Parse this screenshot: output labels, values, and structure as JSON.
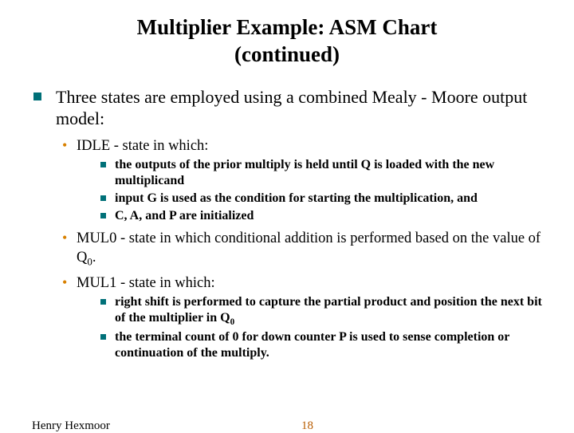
{
  "title_line1": "Multiplier Example: ASM Chart",
  "title_line2": "(continued)",
  "main": "Three states are employed using a combined Mealy - Moore output model:",
  "idle_head": "IDLE - state in which:",
  "idle_1": "the outputs of the prior multiply is held until Q is loaded with the new multiplicand",
  "idle_2": "input G is used as the condition for starting the multiplication, and",
  "idle_3": "C, A, and P are initialized",
  "mul0_a": "MUL0 - state in which conditional addition is performed based on the value of Q",
  "mul0_b": ".",
  "mul1_head": "MUL1 - state in which:",
  "mul1_1a": " right shift is performed to capture the partial product and position the next bit of the multiplier in Q",
  "mul1_2": "the terminal count of 0 for down counter P is used to sense completion  or continuation of the multiply.",
  "footer_author": "Henry Hexmoor",
  "footer_page": "18",
  "colors": {
    "square_bullet": "#007078",
    "round_bullet": "#d88000",
    "page_number": "#b85c00",
    "background": "#ffffff",
    "text": "#000000"
  }
}
